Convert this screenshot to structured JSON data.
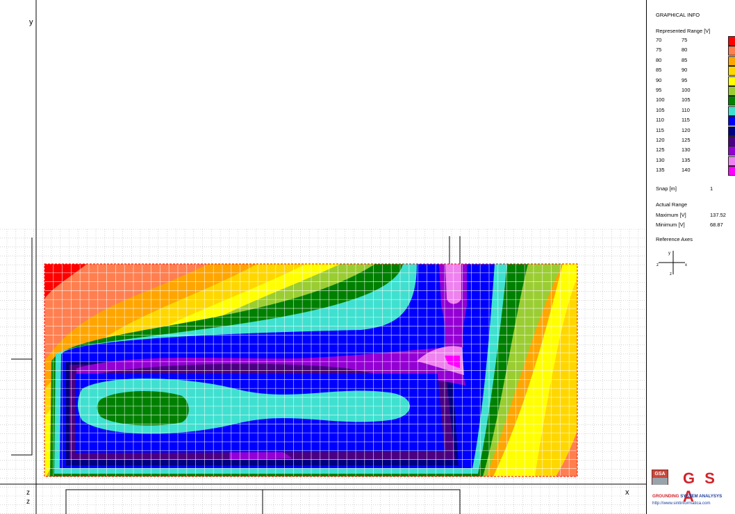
{
  "viewport": {
    "axis_labels": {
      "y": "y",
      "x": "x",
      "z_top": "z",
      "z_bottom": "z"
    }
  },
  "panel": {
    "title": "GRAPHICAL INFO",
    "range_title": "Represented Range [V]",
    "legend": [
      {
        "from": "70",
        "to": "75",
        "color": "#ff0000"
      },
      {
        "from": "75",
        "to": "80",
        "color": "#ff7f50"
      },
      {
        "from": "80",
        "to": "85",
        "color": "#ffa500"
      },
      {
        "from": "85",
        "to": "90",
        "color": "#ffd700"
      },
      {
        "from": "90",
        "to": "95",
        "color": "#ffff00"
      },
      {
        "from": "95",
        "to": "100",
        "color": "#9acd32"
      },
      {
        "from": "100",
        "to": "105",
        "color": "#008000"
      },
      {
        "from": "105",
        "to": "110",
        "color": "#40e0d0"
      },
      {
        "from": "110",
        "to": "115",
        "color": "#0000ff"
      },
      {
        "from": "115",
        "to": "120",
        "color": "#000080"
      },
      {
        "from": "120",
        "to": "125",
        "color": "#4b0082"
      },
      {
        "from": "125",
        "to": "130",
        "color": "#9400d3"
      },
      {
        "from": "130",
        "to": "135",
        "color": "#ee82ee"
      },
      {
        "from": "135",
        "to": "140",
        "color": "#ff00ff"
      }
    ],
    "snap_label": "Snap [m]",
    "snap_value": "1",
    "actual_range_title": "Actual Range",
    "maximum_label": "Maximum [V]",
    "maximum_value": "137.52",
    "minimum_label": "Minimum [V]",
    "minimum_value": "68.87",
    "reference_axes_title": "Reference Axes",
    "ref_axes": {
      "y": "y",
      "x": "x",
      "z": "z",
      "z2": "z"
    },
    "logo": {
      "box_text": "GSA",
      "big_text": "G S A",
      "subtitle_red": "GROUNDING",
      "subtitle_rest": " SYSTEM ANALYSYS",
      "url": "http://www.sintinformatica.com"
    }
  }
}
